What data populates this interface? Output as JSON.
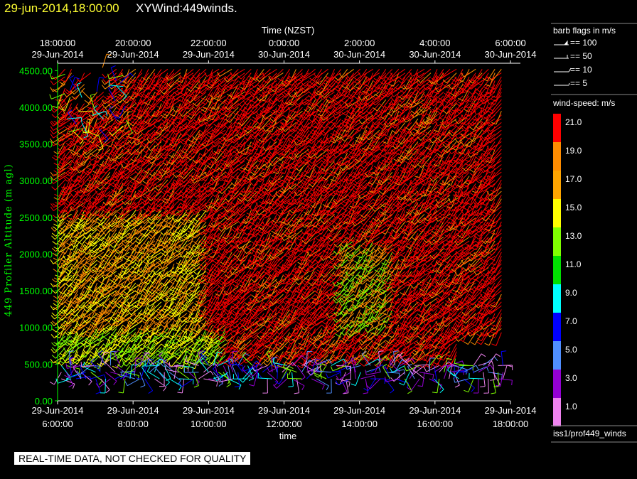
{
  "header": {
    "timestamp": "29-jun-2014,18:00:00",
    "title": "XYWind:449winds."
  },
  "chart_data": {
    "type": "wind-barb",
    "xlabel_top": "Time (NZST)",
    "xlabel_bottom": "time",
    "ylabel": "449 Profiler Altitude (m agl)",
    "x_range_hours": [
      6,
      18
    ],
    "ylim": [
      0,
      4600
    ],
    "y_ticks": [
      "0.00",
      "500.00",
      "1000.00",
      "1500.00",
      "2000.00",
      "2500.00",
      "3000.00",
      "3500.00",
      "4000.00",
      "4500.00"
    ],
    "y_tick_values": [
      0,
      500,
      1000,
      1500,
      2000,
      2500,
      3000,
      3500,
      4000,
      4500
    ],
    "x_ticks_bottom": [
      {
        "hour": 6,
        "date": "29-Jun-2014",
        "time": "6:00:00"
      },
      {
        "hour": 8,
        "date": "29-Jun-2014",
        "time": "8:00:00"
      },
      {
        "hour": 10,
        "date": "29-Jun-2014",
        "time": "10:00:00"
      },
      {
        "hour": 12,
        "date": "29-Jun-2014",
        "time": "12:00:00"
      },
      {
        "hour": 14,
        "date": "29-Jun-2014",
        "time": "14:00:00"
      },
      {
        "hour": 16,
        "date": "29-Jun-2014",
        "time": "16:00:00"
      },
      {
        "hour": 18,
        "date": "29-Jun-2014",
        "time": "18:00:00"
      }
    ],
    "x_ticks_top": [
      {
        "hour": 6,
        "time": "18:00:00",
        "date": "29-Jun-2014"
      },
      {
        "hour": 8,
        "time": "20:00:00",
        "date": "29-Jun-2014"
      },
      {
        "hour": 10,
        "time": "22:00:00",
        "date": "29-Jun-2014"
      },
      {
        "hour": 12,
        "time": "0:00:00",
        "date": "30-Jun-2014"
      },
      {
        "hour": 14,
        "time": "2:00:00",
        "date": "30-Jun-2014"
      },
      {
        "hour": 16,
        "time": "4:00:00",
        "date": "30-Jun-2014"
      },
      {
        "hour": 18,
        "time": "6:00:00",
        "date": "30-Jun-2014"
      }
    ],
    "legend_barbs": {
      "title": "barb flags in m/s",
      "entries": [
        "== 100",
        "== 50",
        "== 10",
        "== 5"
      ]
    },
    "legend_colors": {
      "title": "wind-speed: m/s",
      "labels": [
        "21.0",
        "19.0",
        "17.0",
        "15.0",
        "13.0",
        "11.0",
        "9.0",
        "7.0",
        "5.0",
        "3.0",
        "1.0"
      ],
      "colors": [
        "#ff0000",
        "#ff8c00",
        "#ffa500",
        "#ffff00",
        "#7fff00",
        "#00e000",
        "#00ffff",
        "#0000ff",
        "#4f8fff",
        "#9400d3",
        "#ee82ee"
      ]
    },
    "source_label": "iss1/prof449_winds"
  },
  "footer": {
    "quality_note": "REAL-TIME DATA, NOT CHECKED FOR QUALITY"
  }
}
